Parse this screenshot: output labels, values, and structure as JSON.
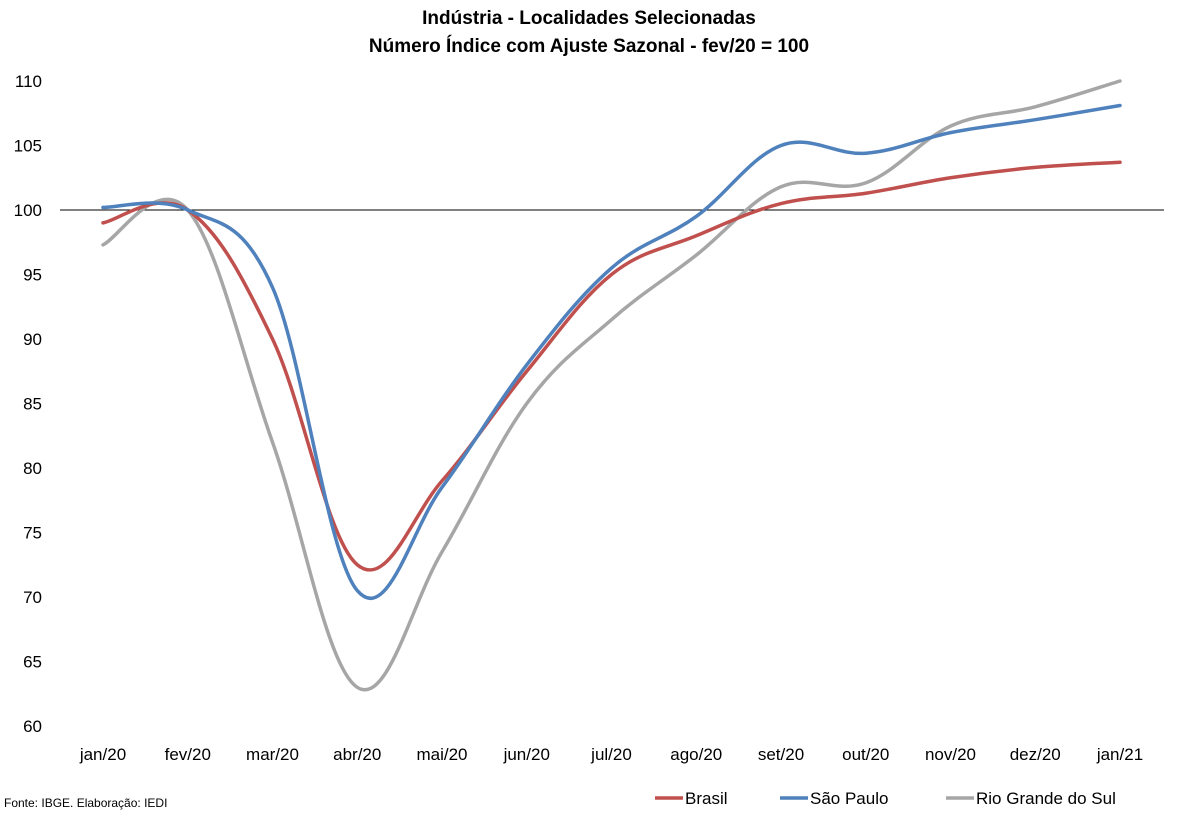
{
  "chart_data": {
    "type": "line",
    "title": "Indústria - Localidades Selecionadas",
    "subtitle": "Número Índice com Ajuste Sazonal - fev/20 = 100",
    "categories": [
      "jan/20",
      "fev/20",
      "mar/20",
      "abr/20",
      "mai/20",
      "jun/20",
      "jul/20",
      "ago/20",
      "set/20",
      "out/20",
      "nov/20",
      "dez/20",
      "jan/21"
    ],
    "ylim": [
      60,
      110
    ],
    "yticks": [
      60,
      65,
      70,
      75,
      80,
      85,
      90,
      95,
      100,
      105,
      110
    ],
    "reference_line": 100,
    "grid": false,
    "legend_position": "bottom",
    "series": [
      {
        "name": "Brasil",
        "color": "#c0504d",
        "values": [
          99.0,
          100.0,
          90.0,
          72.5,
          79.0,
          87.5,
          95.0,
          98.0,
          100.5,
          101.3,
          102.5,
          103.3,
          103.7
        ]
      },
      {
        "name": "São Paulo",
        "color": "#4f81bd",
        "values": [
          100.2,
          100.0,
          94.0,
          70.5,
          78.5,
          88.0,
          95.5,
          99.5,
          105.0,
          104.4,
          106.0,
          107.0,
          108.1
        ]
      },
      {
        "name": "Rio Grande do Sul",
        "color": "#a6a6a6",
        "values": [
          97.3,
          100.0,
          82.0,
          63.0,
          73.5,
          85.0,
          91.5,
          96.5,
          101.8,
          102.1,
          106.5,
          108.0,
          110.0
        ]
      }
    ],
    "source": "Fonte: IBGE. Elaboração: IEDI"
  }
}
